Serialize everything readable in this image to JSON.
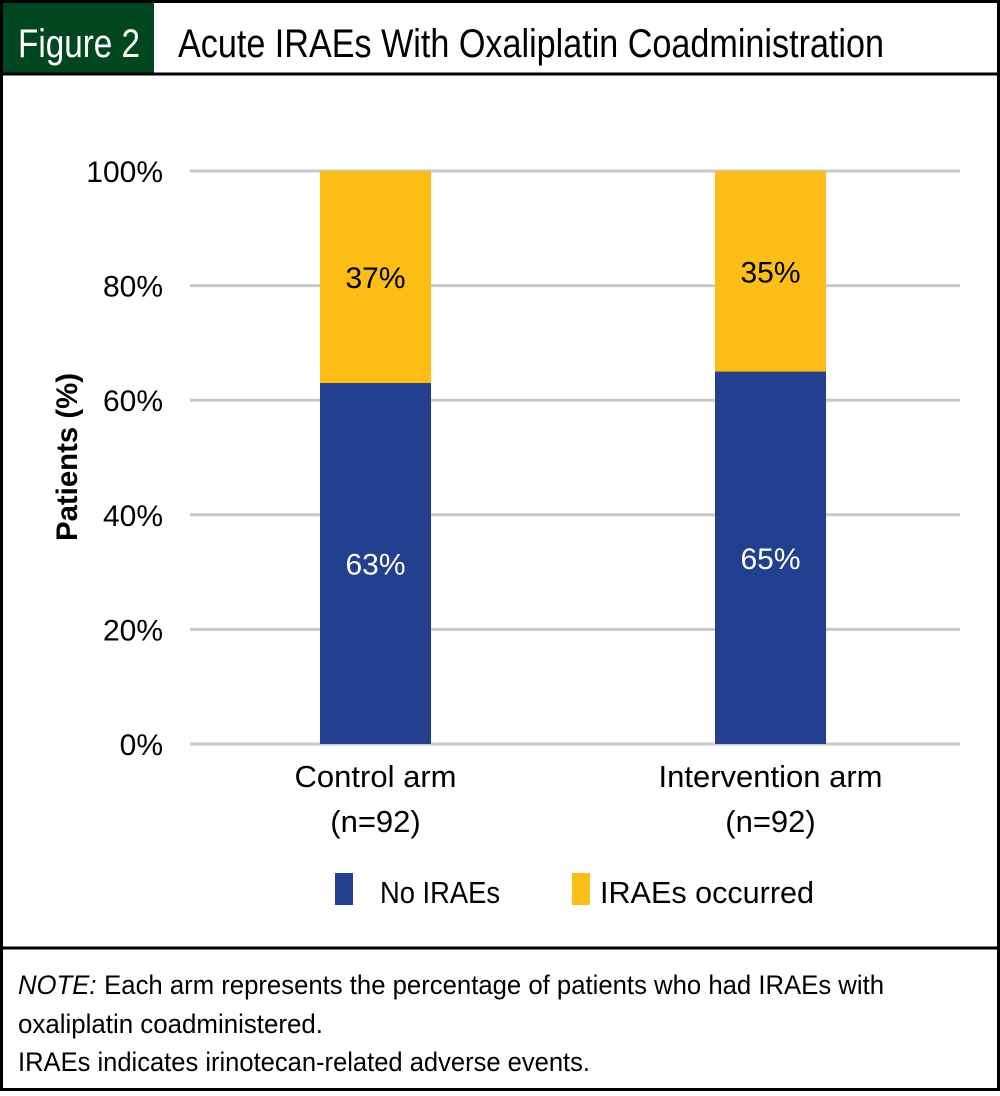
{
  "figure": {
    "label": "Figure 2",
    "title": "Acute IRAEs With Oxaliplatin Coadministration",
    "header_color": "#00461e"
  },
  "chart_data": {
    "type": "bar",
    "stacked": true,
    "ylabel": "Patients (%)",
    "xlabel": "",
    "ylim": [
      0,
      100
    ],
    "yticks": [
      "0%",
      "20%",
      "40%",
      "60%",
      "80%",
      "100%"
    ],
    "grid": true,
    "legend_position": "bottom",
    "categories": [
      {
        "line1": "Control arm",
        "line2": "(n=92)"
      },
      {
        "line1": "Intervention arm",
        "line2": "(n=92)"
      }
    ],
    "series": [
      {
        "name": "No IRAEs",
        "color": "#233f8f",
        "values": [
          63,
          65
        ],
        "labels": [
          "63%",
          "65%"
        ]
      },
      {
        "name": "IRAEs occurred",
        "color": "#fbbd16",
        "values": [
          37,
          35
        ],
        "labels": [
          "37%",
          "35%"
        ]
      }
    ]
  },
  "note": {
    "prefix": "NOTE:",
    "line1": "Each arm represents the percentage of patients who had IRAEs with",
    "line2": "oxaliplatin coadministered.",
    "line3": "IRAEs indicates irinotecan-related adverse events."
  }
}
